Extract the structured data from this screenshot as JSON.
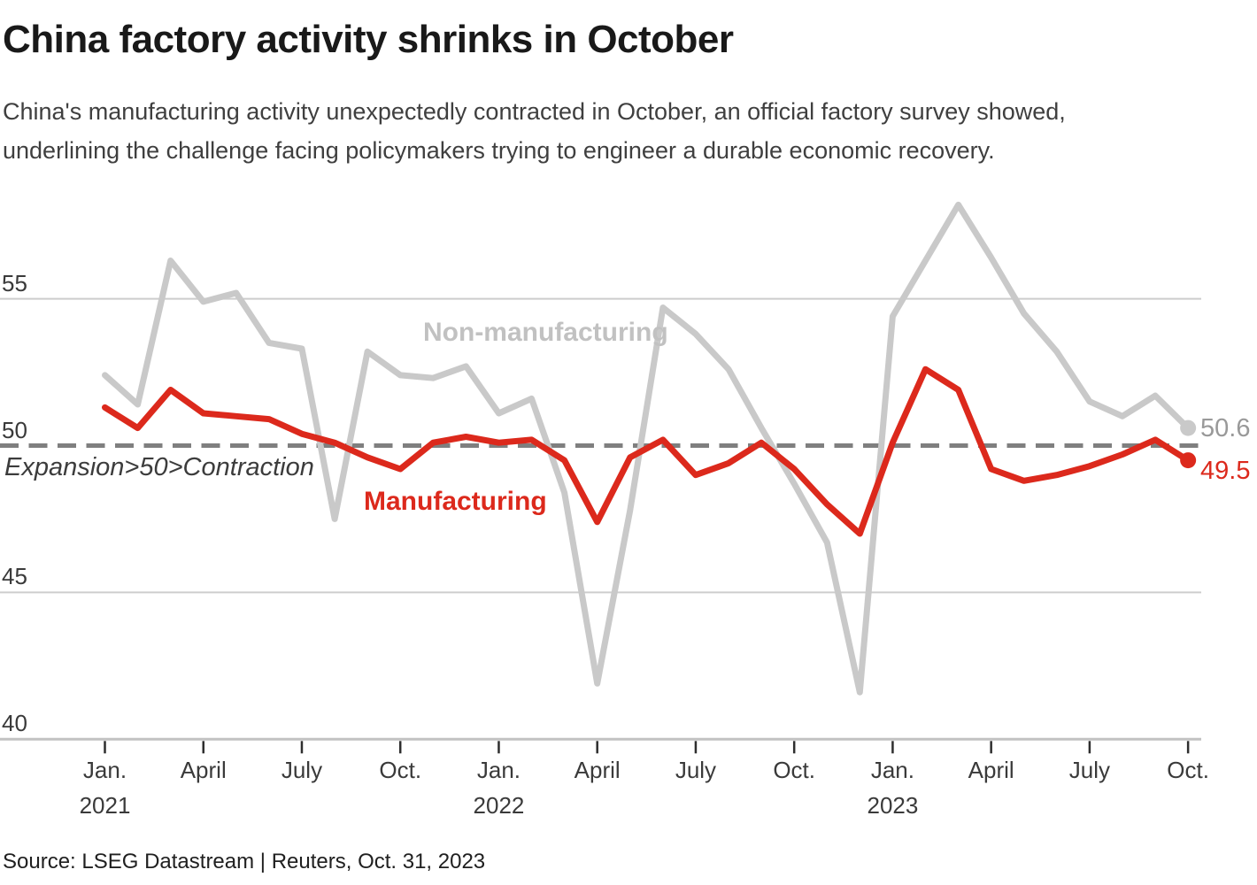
{
  "header": {
    "title": "China factory activity shrinks in October",
    "subtitle": {
      "line1": "China's manufacturing activity unexpectedly contracted in October, an official factory survey showed,",
      "line2": "underlining the challenge facing policymakers trying to engineer a durable economic recovery."
    }
  },
  "source": "Source: LSEG Datastream | Reuters, Oct. 31, 2023",
  "chart_data": {
    "type": "line",
    "title": "China factory activity shrinks in October",
    "x_unit": "month",
    "months": [
      "Jan 2021",
      "Feb 2021",
      "Mar 2021",
      "Apr 2021",
      "May 2021",
      "Jun 2021",
      "Jul 2021",
      "Aug 2021",
      "Sep 2021",
      "Oct 2021",
      "Nov 2021",
      "Dec 2021",
      "Jan 2022",
      "Feb 2022",
      "Mar 2022",
      "Apr 2022",
      "May 2022",
      "Jun 2022",
      "Jul 2022",
      "Aug 2022",
      "Sep 2022",
      "Oct 2022",
      "Nov 2022",
      "Dec 2022",
      "Jan 2023",
      "Feb 2023",
      "Mar 2023",
      "Apr 2023",
      "May 2023",
      "Jun 2023",
      "Jul 2023",
      "Aug 2023",
      "Sep 2023",
      "Oct 2023"
    ],
    "series": [
      {
        "name": "Manufacturing",
        "color": "#dc291c",
        "end_label": "49.5",
        "values": [
          51.3,
          50.6,
          51.9,
          51.1,
          51.0,
          50.9,
          50.4,
          50.1,
          49.6,
          49.2,
          50.1,
          50.3,
          50.1,
          50.2,
          49.5,
          47.4,
          49.6,
          50.2,
          49.0,
          49.4,
          50.1,
          49.2,
          48.0,
          47.0,
          50.1,
          52.6,
          51.9,
          49.2,
          48.8,
          49.0,
          49.3,
          49.7,
          50.2,
          49.5
        ]
      },
      {
        "name": "Non-manufacturing",
        "color": "#c9c9c9",
        "end_label": "50.6",
        "values": [
          52.4,
          51.4,
          56.3,
          54.9,
          55.2,
          53.5,
          53.3,
          47.5,
          53.2,
          52.4,
          52.3,
          52.7,
          51.1,
          51.6,
          48.4,
          41.9,
          47.8,
          54.7,
          53.8,
          52.6,
          50.6,
          48.7,
          46.7,
          41.6,
          54.4,
          56.3,
          58.2,
          56.4,
          54.5,
          53.2,
          51.5,
          51.0,
          51.7,
          50.6
        ]
      }
    ],
    "yticks": [
      55,
      50,
      45,
      40
    ],
    "ylim": [
      40,
      58.5
    ],
    "grid": "horizontal",
    "legend_position": "inline-labels",
    "threshold": {
      "value": 50,
      "annotation": "Expansion>50>Contraction"
    },
    "xticks": [
      {
        "month_index": 0,
        "label": "Jan.",
        "year": "2021"
      },
      {
        "month_index": 3,
        "label": "April"
      },
      {
        "month_index": 6,
        "label": "July"
      },
      {
        "month_index": 9,
        "label": "Oct."
      },
      {
        "month_index": 12,
        "label": "Jan.",
        "year": "2022"
      },
      {
        "month_index": 15,
        "label": "April"
      },
      {
        "month_index": 18,
        "label": "July"
      },
      {
        "month_index": 21,
        "label": "Oct."
      },
      {
        "month_index": 24,
        "label": "Jan.",
        "year": "2023"
      },
      {
        "month_index": 27,
        "label": "April"
      },
      {
        "month_index": 30,
        "label": "July"
      },
      {
        "month_index": 33,
        "label": "Oct."
      }
    ],
    "colors": {
      "grid_line": "#cdcdcd",
      "axis_line": "#c2c2c2",
      "tick_mark": "#2e2e2e",
      "threshold_dash": "#7f7f7f",
      "end_label_non_manufacturing": "#999999",
      "end_label_manufacturing": "#dc291c"
    }
  }
}
